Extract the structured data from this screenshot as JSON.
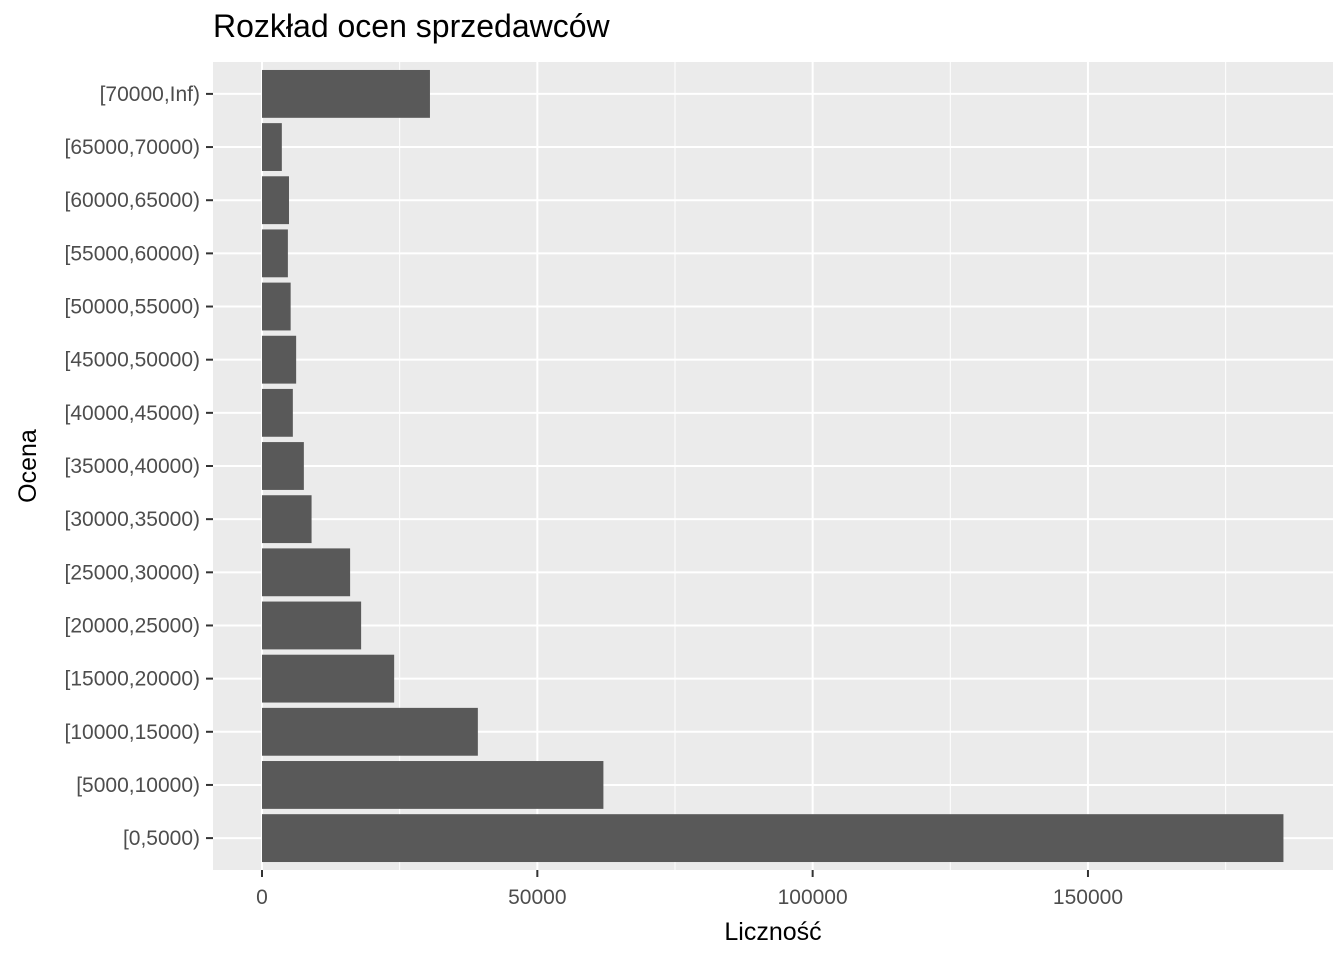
{
  "chart_data": {
    "type": "bar",
    "orientation": "horizontal",
    "title": "Rozkład ocen sprzedawców",
    "xlabel": "Liczność",
    "ylabel": "Ocena",
    "categories": [
      "[0,5000)",
      "[5000,10000)",
      "[10000,15000)",
      "[15000,20000)",
      "[20000,25000)",
      "[25000,30000)",
      "[30000,35000)",
      "[35000,40000)",
      "[40000,45000)",
      "[45000,50000)",
      "[50000,55000)",
      "[55000,60000)",
      "[60000,65000)",
      "[65000,70000)",
      "[70000,Inf)"
    ],
    "values": [
      185500,
      62000,
      39200,
      24000,
      18000,
      16000,
      9000,
      7600,
      5600,
      6200,
      5200,
      4700,
      4900,
      3600,
      30500
    ],
    "xlim": [
      -8900,
      194500
    ],
    "xticks": [
      0,
      50000,
      100000,
      150000
    ],
    "xtick_labels": [
      "0",
      "50000",
      "100000",
      "150000"
    ],
    "grid": true,
    "bar_color": "#595959",
    "panel_color": "#ebebeb"
  }
}
